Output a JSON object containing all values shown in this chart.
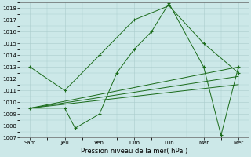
{
  "xlabel": "Pression niveau de la mer( hPa )",
  "bg_color": "#cce8e8",
  "grid_color": "#aacccc",
  "line_color": "#1a6b1a",
  "ylim": [
    1007,
    1018.5
  ],
  "yticks": [
    1007,
    1008,
    1009,
    1010,
    1011,
    1012,
    1013,
    1014,
    1015,
    1016,
    1017,
    1018
  ],
  "x_tick_labels": [
    "Sam",
    "Jeu",
    "Ven",
    "Dim",
    "Lun",
    "Mar",
    "Mer"
  ],
  "series": [
    {
      "x": [
        0,
        1,
        2,
        3,
        4,
        5,
        6
      ],
      "y": [
        1013.0,
        1011.0,
        1014.0,
        1017.0,
        1018.2,
        1015.0,
        1012.5
      ],
      "marker": true
    },
    {
      "x": [
        0,
        1,
        1.3,
        2,
        2.5,
        3,
        3.5,
        4,
        5,
        5.5,
        6
      ],
      "y": [
        1009.5,
        1009.5,
        1007.8,
        1009.0,
        1012.5,
        1014.5,
        1016.0,
        1018.4,
        1013.0,
        1007.2,
        1013.0
      ],
      "marker": true
    },
    {
      "x": [
        0,
        6
      ],
      "y": [
        1009.5,
        1013.0
      ],
      "marker": false
    },
    {
      "x": [
        0,
        6
      ],
      "y": [
        1009.5,
        1012.2
      ],
      "marker": false
    },
    {
      "x": [
        0,
        6
      ],
      "y": [
        1009.5,
        1011.5
      ],
      "marker": false
    }
  ]
}
